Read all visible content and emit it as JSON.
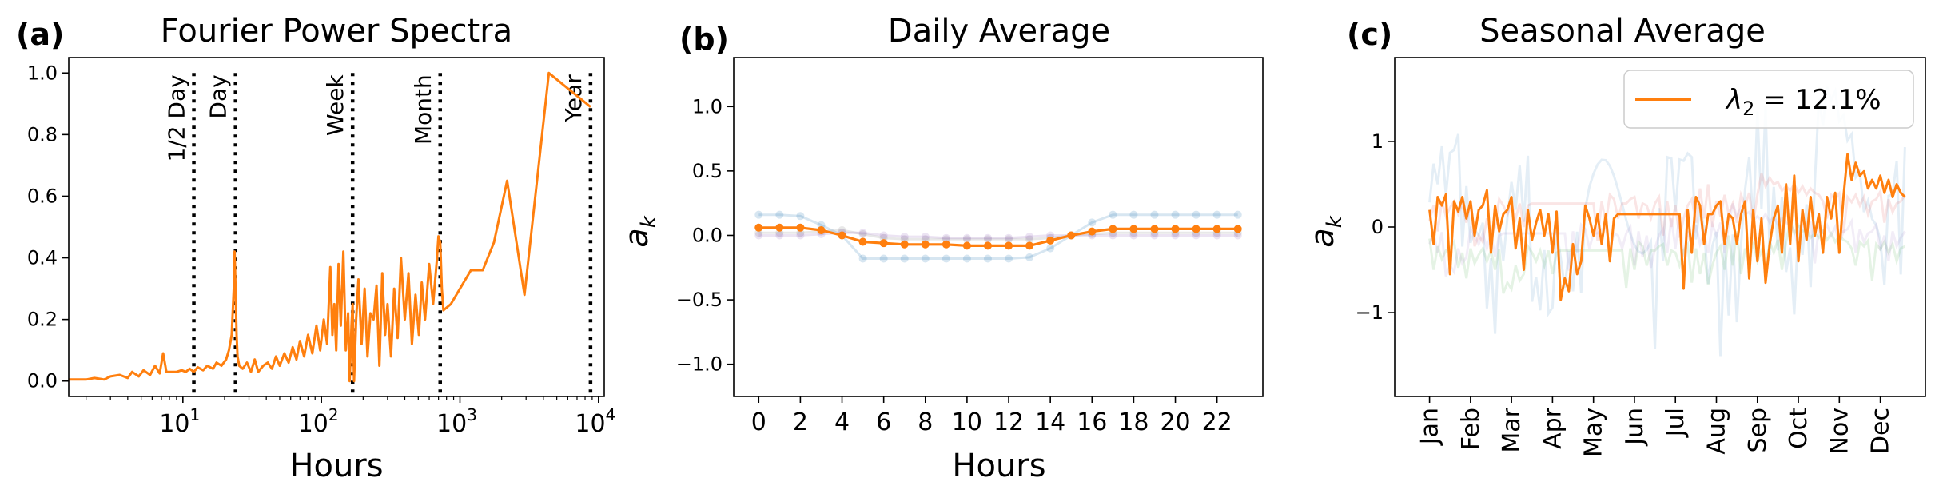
{
  "colors": {
    "main": "#ff7f0e",
    "faint_blue": "#1f77b4",
    "faint_green": "#2ca02c",
    "faint_red": "#d62728",
    "faint_purple": "#9467bd",
    "faint_gray": "#7f7f7f",
    "marker": "#000000"
  },
  "chart_data": [
    {
      "type": "line",
      "panel": "(a)",
      "title": "Fourier Power Spectra",
      "xlabel": "Hours",
      "ylabel": "",
      "xscale": "log",
      "xlim": [
        1.5,
        11000
      ],
      "ylim": [
        -0.05,
        1.05
      ],
      "xticks": [
        10,
        100,
        1000,
        10000
      ],
      "xtick_labels": [
        [
          "10",
          "1"
        ],
        [
          "10",
          "2"
        ],
        [
          "10",
          "3"
        ],
        [
          "10",
          "4"
        ]
      ],
      "yticks": [
        "0.0",
        "0.2",
        "0.4",
        "0.6",
        "0.8",
        "1.0"
      ],
      "period_markers": [
        {
          "label": "1/2 Day",
          "x": 12
        },
        {
          "label": "Day",
          "x": 24
        },
        {
          "label": "Week",
          "x": 168
        },
        {
          "label": "Month",
          "x": 720
        },
        {
          "label": "Year",
          "x": 8760
        }
      ],
      "series": [
        {
          "x": [
            1.5,
            2,
            2.3,
            2.7,
            3,
            3.5,
            4,
            4.3,
            4.8,
            5.2,
            5.8,
            6.3,
            6.8,
            7.2,
            7.6,
            8.3,
            9,
            9.8,
            10.5,
            11.2,
            12,
            12.8,
            14,
            15,
            16.5,
            17.5,
            19,
            20.5,
            21.5,
            22.5,
            23.3,
            23.6,
            24,
            24.4,
            24.8,
            25.5,
            27,
            29,
            31,
            33,
            35,
            38,
            41,
            44,
            47,
            50,
            54,
            58,
            62,
            66,
            70,
            75,
            80,
            86,
            92,
            98,
            104,
            110,
            116,
            120,
            124,
            128,
            133,
            138,
            144,
            150,
            156,
            160,
            165,
            168,
            172,
            178,
            185,
            195,
            205,
            215,
            226,
            238,
            250,
            262,
            275,
            288,
            300,
            318,
            335,
            355,
            375,
            400,
            425,
            450,
            478,
            505,
            530,
            560,
            600,
            640,
            680,
            700,
            720,
            740,
            760,
            860,
            1000,
            1200,
            1460,
            1760,
            2190,
            2920,
            4380,
            8760
          ],
          "y": [
            0.005,
            0.005,
            0.01,
            0.005,
            0.015,
            0.02,
            0.01,
            0.03,
            0.015,
            0.035,
            0.02,
            0.05,
            0.025,
            0.09,
            0.03,
            0.03,
            0.03,
            0.035,
            0.03,
            0.04,
            0.03,
            0.045,
            0.035,
            0.05,
            0.04,
            0.06,
            0.05,
            0.07,
            0.1,
            0.15,
            0.3,
            0.42,
            0.3,
            0.15,
            0.08,
            0.05,
            0.04,
            0.06,
            0.03,
            0.07,
            0.03,
            0.05,
            0.06,
            0.04,
            0.08,
            0.05,
            0.09,
            0.06,
            0.11,
            0.07,
            0.13,
            0.08,
            0.15,
            0.09,
            0.18,
            0.1,
            0.2,
            0.12,
            0.37,
            0.15,
            0.25,
            0.1,
            0.38,
            0.18,
            0.42,
            0.1,
            0.22,
            0.0,
            0.18,
            0.25,
            0.0,
            0.2,
            0.33,
            0.12,
            0.3,
            0.08,
            0.22,
            0.2,
            0.31,
            0.05,
            0.35,
            0.15,
            0.25,
            0.08,
            0.3,
            0.14,
            0.4,
            0.2,
            0.35,
            0.12,
            0.28,
            0.15,
            0.32,
            0.2,
            0.38,
            0.25,
            0.39,
            0.47,
            0.45,
            0.3,
            0.23,
            0.25,
            0.3,
            0.36,
            0.36,
            0.45,
            0.65,
            0.28,
            1.0,
            0.89
          ]
        }
      ]
    },
    {
      "type": "line",
      "panel": "(b)",
      "title": "Daily Average",
      "xlabel": "Hours",
      "ylabel": "a_k",
      "xlim": [
        -1.2,
        24.2
      ],
      "ylim": [
        -1.25,
        1.38
      ],
      "xticks": [
        "0",
        "2",
        "4",
        "6",
        "8",
        "10",
        "12",
        "14",
        "16",
        "18",
        "20",
        "22"
      ],
      "yticks": [
        "−1.0",
        "−0.5",
        "0.0",
        "0.5",
        "1.0"
      ],
      "x": [
        0,
        1,
        2,
        3,
        4,
        5,
        6,
        7,
        8,
        9,
        10,
        11,
        12,
        13,
        14,
        15,
        16,
        17,
        18,
        19,
        20,
        21,
        22,
        23
      ],
      "series": [
        {
          "role": "highlighted",
          "values": [
            0.06,
            0.06,
            0.06,
            0.04,
            0.0,
            -0.05,
            -0.06,
            -0.07,
            -0.07,
            -0.07,
            -0.08,
            -0.08,
            -0.08,
            -0.08,
            -0.04,
            0.0,
            0.03,
            0.05,
            0.05,
            0.05,
            0.05,
            0.05,
            0.05,
            0.05
          ]
        },
        {
          "role": "faint",
          "values": [
            0.16,
            0.16,
            0.15,
            0.08,
            0.0,
            -0.18,
            -0.18,
            -0.18,
            -0.18,
            -0.18,
            -0.18,
            -0.18,
            -0.18,
            -0.17,
            -0.1,
            0.0,
            0.1,
            0.16,
            0.16,
            0.16,
            0.16,
            0.16,
            0.16,
            0.16
          ]
        },
        {
          "role": "faint",
          "values": [
            0.02,
            0.02,
            0.02,
            0.03,
            0.04,
            0.01,
            -0.02,
            -0.03,
            -0.03,
            -0.03,
            -0.03,
            -0.03,
            -0.03,
            -0.03,
            -0.02,
            0.0,
            0.01,
            0.02,
            0.02,
            0.02,
            0.02,
            0.02,
            0.02,
            0.02
          ]
        },
        {
          "role": "faint",
          "values": [
            0.0,
            0.0,
            0.0,
            0.01,
            0.02,
            0.02,
            0.0,
            -0.01,
            -0.01,
            -0.02,
            -0.02,
            -0.02,
            -0.02,
            -0.01,
            0.0,
            0.0,
            0.0,
            0.0,
            0.0,
            0.0,
            0.0,
            0.0,
            0.0,
            0.0
          ]
        }
      ]
    },
    {
      "type": "line",
      "panel": "(c)",
      "title": "Seasonal Average",
      "ylabel": "a_k",
      "ylim": [
        -1.98,
        1.98
      ],
      "yticks": [
        "−1",
        "0",
        "1"
      ],
      "xticks": [
        "Jan",
        "Feb",
        "Mar",
        "Apr",
        "May",
        "Jun",
        "Jul",
        "Aug",
        "Sep",
        "Oct",
        "Nov",
        "Dec"
      ],
      "legend": {
        "symbol": "λ",
        "subscript": "2",
        "text": " = 12.1%",
        "loc": "upper right"
      },
      "series": [
        {
          "role": "highlighted",
          "x_month": [
            0.0,
            0.1,
            0.2,
            0.3,
            0.4,
            0.5,
            0.6,
            0.7,
            0.8,
            0.9,
            1.0,
            1.1,
            1.2,
            1.3,
            1.4,
            1.5,
            1.6,
            1.7,
            1.8,
            1.9,
            2.0,
            2.1,
            2.2,
            2.3,
            2.4,
            2.5,
            2.6,
            2.7,
            2.8,
            2.9,
            3.0,
            3.1,
            3.2,
            3.3,
            3.4,
            3.5,
            3.6,
            3.7,
            3.8,
            3.9,
            4.0,
            4.1,
            4.2,
            4.3,
            4.4,
            4.5,
            4.6,
            4.7,
            4.8,
            4.9,
            5.0,
            5.1,
            5.2,
            5.3,
            5.4,
            5.5,
            5.6,
            5.7,
            5.8,
            5.9,
            6.0,
            6.1,
            6.2,
            6.3,
            6.4,
            6.5,
            6.6,
            6.7,
            6.8,
            6.9,
            7.0,
            7.1,
            7.2,
            7.3,
            7.4,
            7.5,
            7.6,
            7.7,
            7.8,
            7.9,
            8.0,
            8.1,
            8.2,
            8.3,
            8.4,
            8.5,
            8.6,
            8.7,
            8.8,
            8.9,
            9.0,
            9.1,
            9.2,
            9.3,
            9.4,
            9.5,
            9.6,
            9.7,
            9.8,
            9.9,
            10.0,
            10.1,
            10.2,
            10.3,
            10.4,
            10.5,
            10.6,
            10.7,
            10.8,
            10.9,
            11.0,
            11.1,
            11.2,
            11.3,
            11.4,
            11.5,
            11.6
          ],
          "values": [
            0.2,
            -0.2,
            0.35,
            0.25,
            0.38,
            -0.55,
            0.3,
            0.18,
            0.35,
            0.1,
            0.3,
            -0.1,
            0.2,
            0.25,
            0.43,
            -0.3,
            0.25,
            -0.05,
            0.15,
            0.2,
            0.35,
            -0.25,
            0.1,
            -0.5,
            0.2,
            -0.15,
            0.05,
            0.2,
            -0.1,
            0.15,
            -0.3,
            0.18,
            -0.85,
            -0.6,
            -0.75,
            -0.2,
            -0.55,
            -0.4,
            0.25,
            0.1,
            -0.1,
            0.15,
            -0.2,
            0.15,
            -0.4,
            0.1,
            0.15,
            0.15,
            0.15,
            0.15,
            0.15,
            0.15,
            0.15,
            0.15,
            0.15,
            0.15,
            0.15,
            0.15,
            0.15,
            0.15,
            0.15,
            0.15,
            -0.72,
            0.2,
            -0.3,
            0.35,
            0.25,
            -0.2,
            0.15,
            0.15,
            0.25,
            0.3,
            -0.2,
            0.15,
            0.1,
            -0.2,
            0.15,
            0.3,
            -0.6,
            0.2,
            -0.4,
            0.1,
            -0.65,
            -0.2,
            0.1,
            0.25,
            -0.3,
            0.5,
            -0.2,
            0.6,
            -0.4,
            0.2,
            -0.15,
            0.35,
            -0.1,
            0.15,
            -0.3,
            0.35,
            0.1,
            0.4,
            -0.3,
            0.35,
            0.85,
            0.55,
            0.75,
            0.6,
            0.65,
            0.45,
            0.55,
            0.45,
            0.6,
            0.4,
            0.55,
            0.35,
            0.5,
            0.4,
            0.35
          ]
        }
      ]
    }
  ]
}
